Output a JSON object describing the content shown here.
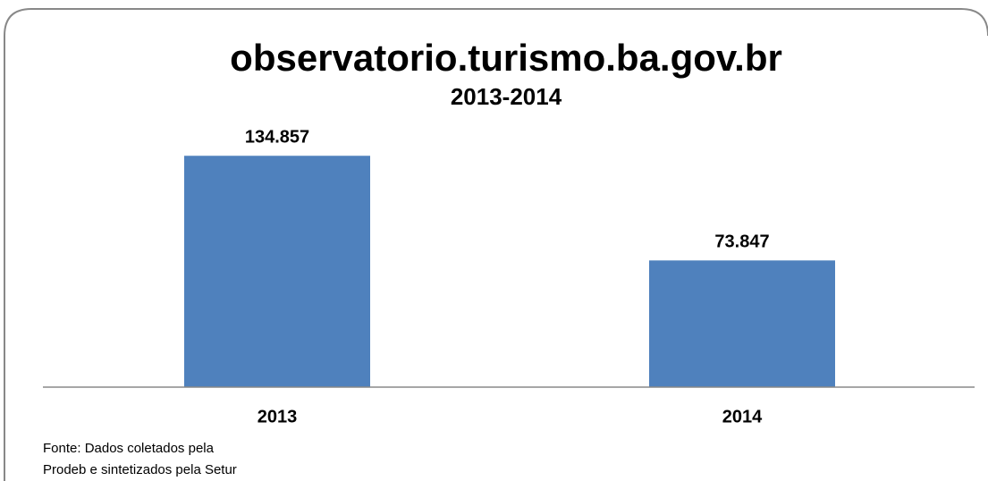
{
  "chart_data": {
    "type": "bar",
    "title": "observatorio.turismo.ba.gov.br",
    "subtitle": "2013-2014",
    "categories": [
      "2013",
      "2014"
    ],
    "values": [
      134857,
      73847
    ],
    "value_labels": [
      "134.857",
      "73.847"
    ],
    "color": "#4f81bd",
    "ylim": [
      0,
      160000
    ],
    "source": [
      "Fonte: Dados coletados  pela",
      "Prodeb e sintetizados pela  Setur"
    ]
  }
}
